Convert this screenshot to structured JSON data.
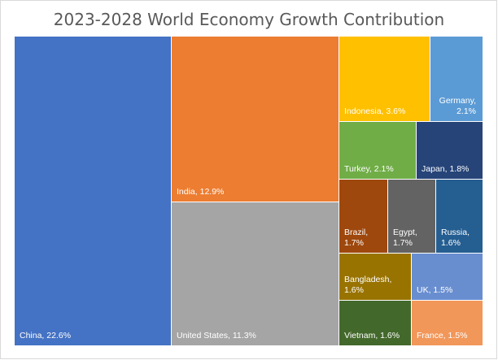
{
  "chart_data": {
    "type": "treemap",
    "title": "2023-2028 World Economy Growth Contribution",
    "unit": "%",
    "items": [
      {
        "name": "China",
        "value": 22.6,
        "label": "China, 22.6%",
        "color": "#4472c4",
        "text_color": "#ffffff"
      },
      {
        "name": "India",
        "value": 12.9,
        "label": "India, 12.9%",
        "color": "#ed7d31",
        "text_color": "#ffffff"
      },
      {
        "name": "United States",
        "value": 11.3,
        "label": "United States, 11.3%",
        "color": "#a5a5a5",
        "text_color": "#ffffff"
      },
      {
        "name": "Indonesia",
        "value": 3.6,
        "label": "Indonesia, 3.6%",
        "color": "#ffc000",
        "text_color": "#ffffff"
      },
      {
        "name": "Germany",
        "value": 2.1,
        "label": "Germany, 2.1%",
        "label_lines": [
          "Germany,",
          "2.1%"
        ],
        "color": "#5b9bd5",
        "text_color": "#ffffff"
      },
      {
        "name": "Turkey",
        "value": 2.1,
        "label": "Turkey, 2.1%",
        "color": "#70ad47",
        "text_color": "#ffffff"
      },
      {
        "name": "Japan",
        "value": 1.8,
        "label": "Japan, 1.8%",
        "color": "#264478",
        "text_color": "#ffffff"
      },
      {
        "name": "Brazil",
        "value": 1.7,
        "label": "Brazil, 1.7%",
        "label_lines": [
          "Brazil,",
          "1.7%"
        ],
        "color": "#9e480e",
        "text_color": "#ffffff"
      },
      {
        "name": "Egypt",
        "value": 1.7,
        "label": "Egypt, 1.7%",
        "label_lines": [
          "Egypt,",
          "1.7%"
        ],
        "color": "#636363",
        "text_color": "#ffffff"
      },
      {
        "name": "Russia",
        "value": 1.6,
        "label": "Russia, 1.6%",
        "label_lines": [
          "Russia,",
          "1.6%"
        ],
        "color": "#255e91",
        "text_color": "#ffffff"
      },
      {
        "name": "Bangladesh",
        "value": 1.6,
        "label": "Bangladesh, 1.6%",
        "label_lines": [
          "Bangladesh,",
          "1.6%"
        ],
        "color": "#997300",
        "text_color": "#ffffff"
      },
      {
        "name": "UK",
        "value": 1.5,
        "label": "UK, 1.5%",
        "color": "#698ed0",
        "text_color": "#ffffff"
      },
      {
        "name": "Vietnam",
        "value": 1.6,
        "label": "Vietnam, 1.6%",
        "color": "#43682b",
        "text_color": "#ffffff"
      },
      {
        "name": "France",
        "value": 1.5,
        "label": "France, 1.5%",
        "color": "#f1975a",
        "text_color": "#ffffff"
      }
    ]
  }
}
